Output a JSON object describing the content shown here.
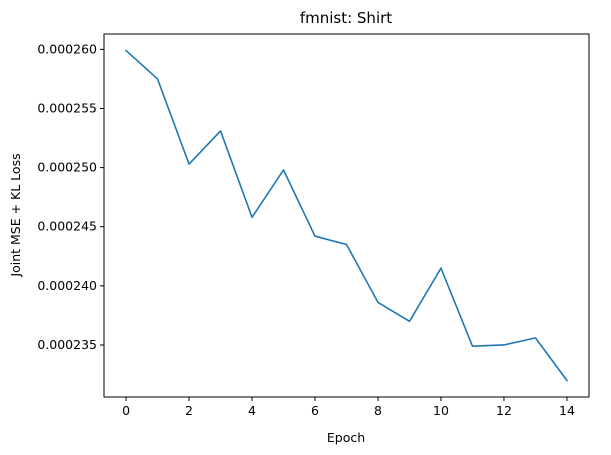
{
  "chart_data": {
    "type": "line",
    "title": "fmnist: Shirt",
    "xlabel": "Epoch",
    "ylabel": "Joint MSE + KL Loss",
    "x": [
      0,
      1,
      2,
      3,
      4,
      5,
      6,
      7,
      8,
      9,
      10,
      11,
      12,
      13,
      14
    ],
    "series": [
      {
        "values": [
          0.0002599,
          0.0002575,
          0.0002503,
          0.0002531,
          0.0002458,
          0.0002498,
          0.0002442,
          0.0002435,
          0.0002386,
          0.000237,
          0.0002415,
          0.0002349,
          0.000235,
          0.0002356,
          0.000232
        ],
        "color": "#1f77b4"
      }
    ],
    "xlim": [
      -0.7,
      14.7
    ],
    "ylim": [
      0.0002306,
      0.0002613
    ],
    "xticks": [
      0,
      2,
      4,
      6,
      8,
      10,
      12,
      14
    ],
    "xtick_labels": [
      "0",
      "2",
      "4",
      "6",
      "8",
      "10",
      "12",
      "14"
    ],
    "yticks": [
      0.000235,
      0.00024,
      0.000245,
      0.00025,
      0.000255,
      0.00026
    ],
    "ytick_labels": [
      "0.000235",
      "0.000240",
      "0.000245",
      "0.000250",
      "0.000255",
      "0.000260"
    ],
    "grid": false,
    "legend": "none"
  }
}
